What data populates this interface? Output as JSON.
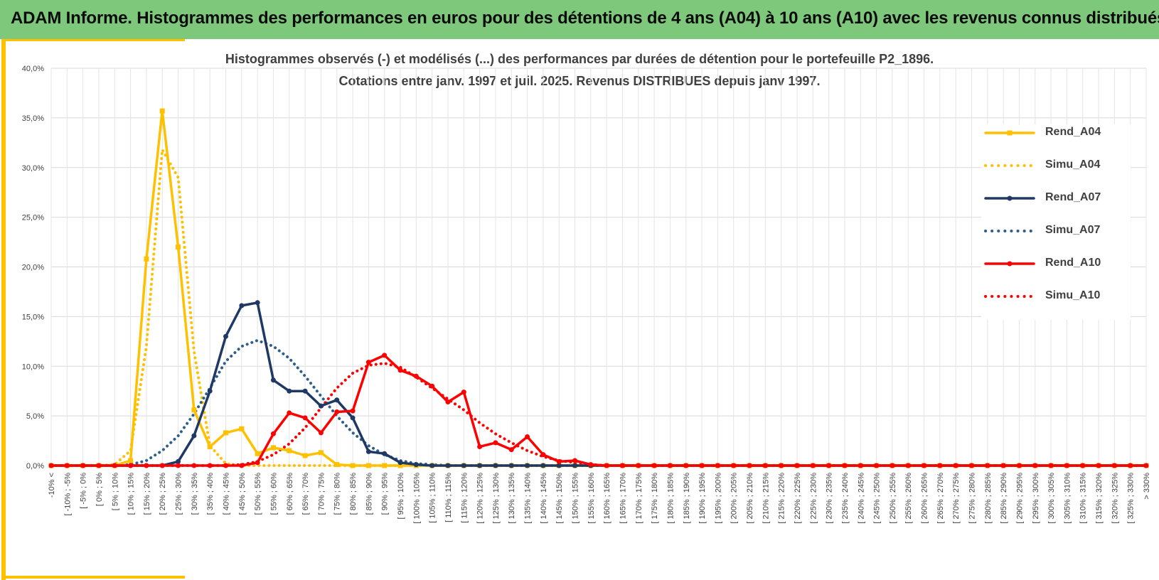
{
  "header": {
    "title": "ADAM Informe. Histogrammes des performances en euros pour des détentions de 4 ans (A04) à 10 ans (A10) avec les revenus connus distribués"
  },
  "chart_data": {
    "type": "line",
    "title_line1": "Histogrammes observés (-) et modélisés (...) des performances par durées de détention pour le portefeuille P2_1896.",
    "title_line2": "Cotations entre janv. 1997 et juil. 2025. Revenus DISTRIBUES depuis janv 1997.",
    "ylim": [
      0,
      40
    ],
    "yticks": [
      "0,0%",
      "5,0%",
      "10,0%",
      "15,0%",
      "20,0%",
      "25,0%",
      "30,0%",
      "35,0%",
      "40,0%"
    ],
    "grid": true,
    "legend_position": "right",
    "categories": [
      "-10% <",
      "[ -10% ; -5%",
      "[ -5% ; 0%",
      "[ 0% ; 5%",
      "[ 5% ; 10%",
      "[ 10% ; 15%",
      "[ 15% ; 20%",
      "[ 20% ; 25%",
      "[ 25% ; 30%",
      "[ 30% ; 35%",
      "[ 35% ; 40%",
      "[ 40% ; 45%",
      "[ 45% ; 50%",
      "[ 50% ; 55%",
      "[ 55% ; 60%",
      "[ 60% ; 65%",
      "[ 65% ; 70%",
      "[ 70% ; 75%",
      "[ 75% ; 80%",
      "[ 80% ; 85%",
      "[ 85% ; 90%",
      "[ 90% ; 95%",
      "[ 95% ; 100%",
      "[ 100% ; 105%",
      "[ 105% ; 110%",
      "[ 110% ; 115%",
      "[ 115% ; 120%",
      "[ 120% ; 125%",
      "[ 125% ; 130%",
      "[ 130% ; 135%",
      "[ 135% ; 140%",
      "[ 140% ; 145%",
      "[ 145% ; 150%",
      "[ 150% ; 155%",
      "[ 155% ; 160%",
      "[ 160% ; 165%",
      "[ 165% ; 170%",
      "[ 170% ; 175%",
      "[ 175% ; 180%",
      "[ 180% ; 185%",
      "[ 185% ; 190%",
      "[ 190% ; 195%",
      "[ 195% ; 200%",
      "[ 200% ; 205%",
      "[ 205% ; 210%",
      "[ 210% ; 215%",
      "[ 215% ; 220%",
      "[ 220% ; 225%",
      "[ 225% ; 230%",
      "[ 230% ; 235%",
      "[ 235% ; 240%",
      "[ 240% ; 245%",
      "[ 245% ; 250%",
      "[ 250% ; 255%",
      "[ 255% ; 260%",
      "[ 260% ; 265%",
      "[ 265% ; 270%",
      "[ 270% ; 275%",
      "[ 275% ; 280%",
      "[ 280% ; 285%",
      "[ 285% ; 290%",
      "[ 290% ; 295%",
      "[ 295% ; 300%",
      "[ 300% ; 305%",
      "[ 305% ; 310%",
      "[ 310% ; 315%",
      "[ 315% ; 320%",
      "[ 320% ; 325%",
      "[ 325% ; 330%",
      "> 330%"
    ],
    "series": [
      {
        "name": "Rend_A04",
        "color": "#ffc000",
        "style": "solid",
        "marker": "square",
        "values": [
          0,
          0,
          0,
          0,
          0,
          0.5,
          20.8,
          35.7,
          22.0,
          5.6,
          1.9,
          3.3,
          3.7,
          1.2,
          1.8,
          1.5,
          1.0,
          1.3,
          0.1,
          0,
          0,
          0,
          0,
          0,
          0,
          0,
          0,
          0,
          0,
          0,
          0,
          0,
          0,
          0,
          0,
          0,
          0,
          0,
          0,
          0,
          0,
          0,
          0,
          0,
          0,
          0,
          0,
          0,
          0,
          0,
          0,
          0,
          0,
          0,
          0,
          0,
          0,
          0,
          0,
          0,
          0,
          0,
          0,
          0,
          0,
          0,
          0,
          0,
          0,
          0
        ]
      },
      {
        "name": "Simu_A04",
        "color": "#ffc000",
        "style": "dotted",
        "marker": "none",
        "values": [
          0,
          0,
          0,
          0,
          0.1,
          1.5,
          12.0,
          31.8,
          29.0,
          11.5,
          2.0,
          0.2,
          0,
          0,
          0,
          0,
          0,
          0,
          0,
          0,
          0,
          0,
          0,
          0,
          0,
          0,
          0,
          0,
          0,
          0,
          0,
          0,
          0,
          0,
          0,
          0,
          0,
          0,
          0,
          0,
          0,
          0,
          0,
          0,
          0,
          0,
          0,
          0,
          0,
          0,
          0,
          0,
          0,
          0,
          0,
          0,
          0,
          0,
          0,
          0,
          0,
          0,
          0,
          0,
          0,
          0,
          0,
          0,
          0,
          0
        ]
      },
      {
        "name": "Rend_A07",
        "color": "#1f3864",
        "style": "solid",
        "marker": "circle",
        "values": [
          0,
          0,
          0,
          0,
          0,
          0,
          0,
          0,
          0.4,
          3.0,
          7.5,
          13.0,
          16.1,
          16.4,
          8.6,
          7.5,
          7.5,
          6.0,
          6.6,
          4.8,
          1.4,
          1.2,
          0.3,
          0.1,
          0,
          0,
          0,
          0,
          0,
          0,
          0,
          0,
          0,
          0,
          0,
          0,
          0,
          0,
          0,
          0,
          0,
          0,
          0,
          0,
          0,
          0,
          0,
          0,
          0,
          0,
          0,
          0,
          0,
          0,
          0,
          0,
          0,
          0,
          0,
          0,
          0,
          0,
          0,
          0,
          0,
          0,
          0,
          0,
          0,
          0
        ]
      },
      {
        "name": "Simu_A07",
        "color": "#2e5f8a",
        "style": "dotted",
        "marker": "none",
        "values": [
          0,
          0,
          0,
          0,
          0,
          0.1,
          0.5,
          1.5,
          3.0,
          5.2,
          7.8,
          10.5,
          12.0,
          12.6,
          12.0,
          10.8,
          9.0,
          7.0,
          5.0,
          3.3,
          2.0,
          1.1,
          0.5,
          0.2,
          0.1,
          0,
          0,
          0,
          0,
          0,
          0,
          0,
          0,
          0,
          0,
          0,
          0,
          0,
          0,
          0,
          0,
          0,
          0,
          0,
          0,
          0,
          0,
          0,
          0,
          0,
          0,
          0,
          0,
          0,
          0,
          0,
          0,
          0,
          0,
          0,
          0,
          0,
          0,
          0,
          0,
          0,
          0,
          0,
          0,
          0
        ]
      },
      {
        "name": "Rend_A10",
        "color": "#ff0000",
        "style": "solid",
        "marker": "circle",
        "values": [
          0,
          0,
          0,
          0,
          0,
          0,
          0,
          0,
          0,
          0,
          0,
          0,
          0,
          0.3,
          3.2,
          5.3,
          4.8,
          3.3,
          5.4,
          5.5,
          10.4,
          11.1,
          9.6,
          9.0,
          8.0,
          6.4,
          7.4,
          1.9,
          2.3,
          1.6,
          2.9,
          1.1,
          0.4,
          0.5,
          0.1,
          0,
          0,
          0,
          0,
          0,
          0,
          0,
          0,
          0,
          0,
          0,
          0,
          0,
          0,
          0,
          0,
          0,
          0,
          0,
          0,
          0,
          0,
          0,
          0,
          0,
          0,
          0,
          0,
          0,
          0,
          0,
          0,
          0,
          0,
          0
        ]
      },
      {
        "name": "Simu_A10",
        "color": "#ff0000",
        "style": "dotted",
        "marker": "none",
        "values": [
          0,
          0,
          0,
          0,
          0,
          0,
          0,
          0,
          0,
          0,
          0,
          0,
          0.1,
          0.4,
          1.1,
          2.2,
          3.8,
          5.8,
          7.8,
          9.3,
          10.1,
          10.3,
          9.9,
          8.9,
          7.8,
          6.7,
          5.6,
          4.3,
          3.2,
          2.3,
          1.5,
          0.9,
          0.5,
          0.3,
          0.1,
          0,
          0,
          0,
          0,
          0,
          0,
          0,
          0,
          0,
          0,
          0,
          0,
          0,
          0,
          0,
          0,
          0,
          0,
          0,
          0,
          0,
          0,
          0,
          0,
          0,
          0,
          0,
          0,
          0,
          0,
          0,
          0,
          0,
          0,
          0
        ]
      }
    ]
  }
}
